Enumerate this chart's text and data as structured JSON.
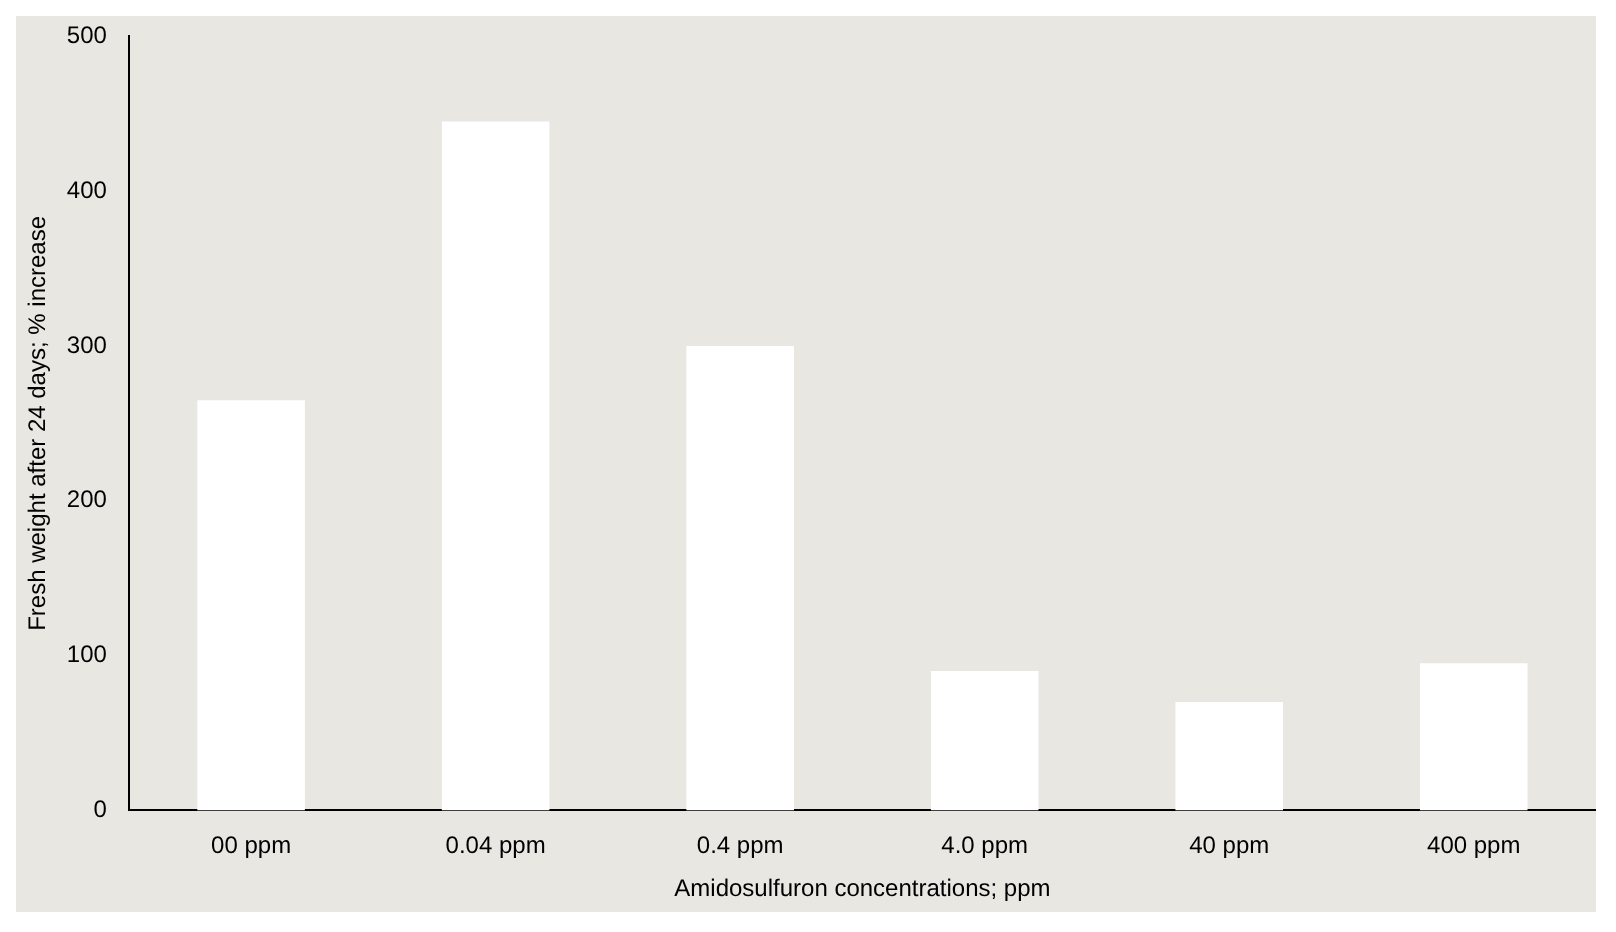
{
  "chart_data": {
    "type": "bar",
    "xlabel": "Amidosulfuron concentrations; ppm",
    "ylabel": "Fresh weight after 24 days; % increase",
    "categories": [
      "00 ppm",
      "0.04 ppm",
      "0.4 ppm",
      "4.0 ppm",
      "40 ppm",
      "400 ppm"
    ],
    "values": [
      265,
      445,
      300,
      90,
      70,
      95
    ],
    "color": "#ffffff",
    "ylim": [
      0,
      500
    ],
    "yticks": [
      0,
      100,
      200,
      300,
      400,
      500
    ],
    "grid": false,
    "legend": false
  }
}
